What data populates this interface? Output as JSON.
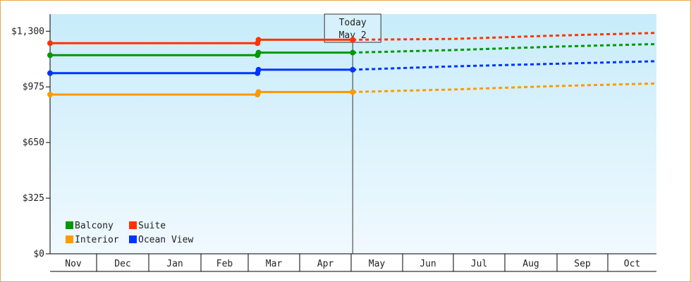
{
  "chart_data": {
    "type": "line",
    "title": "",
    "xlabel": "",
    "ylabel": "",
    "ylim": [
      0,
      1300
    ],
    "y_ticks": [
      {
        "value": 0,
        "label": "$0"
      },
      {
        "value": 325,
        "label": "$325"
      },
      {
        "value": 650,
        "label": "$650"
      },
      {
        "value": 975,
        "label": "$975"
      },
      {
        "value": 1300,
        "label": "$1,300"
      }
    ],
    "months": [
      "Nov",
      "Dec",
      "Jan",
      "Feb",
      "Mar",
      "Apr",
      "May",
      "Jun",
      "Jul",
      "Aug",
      "Sep",
      "Oct"
    ],
    "today": {
      "line1": "Today",
      "line2": "May 2",
      "x": 6.03
    },
    "grid": false,
    "legend_position": "bottom-left",
    "series": [
      {
        "name": "Suite",
        "color": "#ff3300",
        "history": [
          [
            0,
            1230
          ],
          [
            4.18,
            1230
          ],
          [
            4.2,
            1250
          ],
          [
            6.03,
            1250
          ]
        ],
        "forecast": [
          [
            6.03,
            1250
          ],
          [
            8,
            1255
          ],
          [
            10,
            1275
          ],
          [
            12,
            1290
          ]
        ]
      },
      {
        "name": "Balcony",
        "color": "#009900",
        "history": [
          [
            0,
            1160
          ],
          [
            4.18,
            1160
          ],
          [
            4.2,
            1175
          ],
          [
            6.03,
            1175
          ]
        ],
        "forecast": [
          [
            6.03,
            1175
          ],
          [
            8,
            1190
          ],
          [
            10,
            1210
          ],
          [
            12,
            1225
          ]
        ]
      },
      {
        "name": "Ocean View",
        "color": "#0033ff",
        "history": [
          [
            0,
            1055
          ],
          [
            4.18,
            1055
          ],
          [
            4.2,
            1075
          ],
          [
            6.03,
            1075
          ]
        ],
        "forecast": [
          [
            6.03,
            1075
          ],
          [
            8,
            1095
          ],
          [
            10,
            1110
          ],
          [
            12,
            1125
          ]
        ]
      },
      {
        "name": "Interior",
        "color": "#ff9900",
        "history": [
          [
            0,
            930
          ],
          [
            4.18,
            930
          ],
          [
            4.2,
            945
          ],
          [
            6.03,
            945
          ]
        ],
        "forecast": [
          [
            6.03,
            945
          ],
          [
            8,
            960
          ],
          [
            10,
            980
          ],
          [
            12,
            995
          ]
        ]
      }
    ],
    "legend": [
      {
        "name": "Balcony",
        "color": "#009900"
      },
      {
        "name": "Suite",
        "color": "#ff3300"
      },
      {
        "name": "Interior",
        "color": "#ff9900"
      },
      {
        "name": "Ocean View",
        "color": "#0033ff"
      }
    ]
  }
}
